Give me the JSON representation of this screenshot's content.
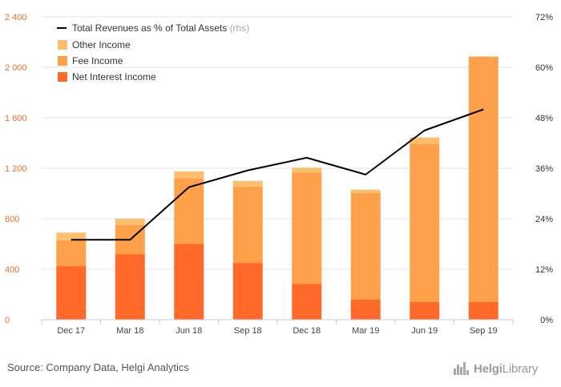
{
  "chart_data": {
    "type": "bar",
    "stacked": true,
    "categories": [
      "Dec 17",
      "Mar 18",
      "Jun 18",
      "Sep 18",
      "Dec 18",
      "Mar 19",
      "Jun 19",
      "Sep 19"
    ],
    "series": [
      {
        "name": "Net Interest Income",
        "color": "#ff6a2a",
        "values": [
          425,
          520,
          600,
          450,
          285,
          160,
          140,
          140
        ]
      },
      {
        "name": "Fee Income",
        "color": "#ffa04a",
        "values": [
          205,
          230,
          520,
          605,
          880,
          845,
          1255,
          1945
        ]
      },
      {
        "name": "Other Income",
        "color": "#ffbe6e",
        "values": [
          60,
          50,
          55,
          45,
          40,
          25,
          50,
          0
        ]
      }
    ],
    "line_series": {
      "name": "Total Revenues as % of Total Assets",
      "name_suffix": "(rhs)",
      "color": "#000000",
      "axis": "right",
      "values": [
        19.0,
        19.0,
        31.5,
        35.5,
        38.5,
        34.5,
        45.0,
        50.0
      ]
    },
    "ylim": [
      0,
      2400
    ],
    "y_ticks": [
      "0",
      "400",
      "800",
      "1 200",
      "1 600",
      "2 000",
      "2 400"
    ],
    "y2lim": [
      0,
      72
    ],
    "y2_ticks": [
      "0%",
      "12%",
      "24%",
      "36%",
      "48%",
      "60%",
      "72%"
    ],
    "grid": true,
    "legend_position": "top-left"
  },
  "footer": {
    "source": "Source: Company Data, Helgi Analytics",
    "logo_main": "Helgi",
    "logo_light": "Library"
  }
}
